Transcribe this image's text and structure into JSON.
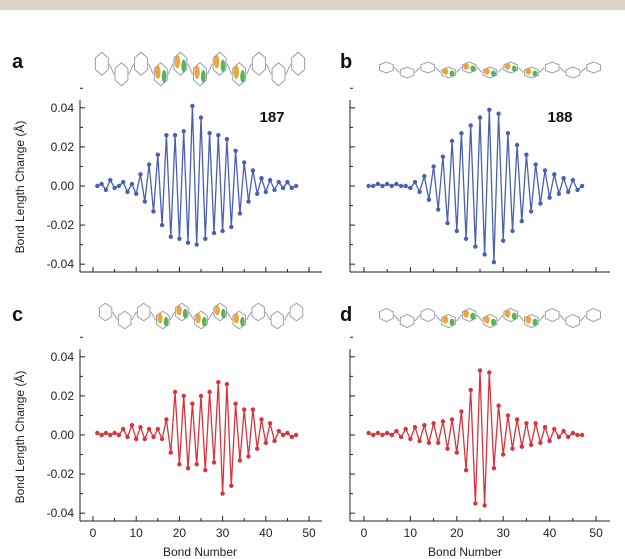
{
  "figure": {
    "ylabel": "Bond Length Change (Å)",
    "xlabel": "Bond Number",
    "colors": {
      "blue": "#4a60b0",
      "red": "#d8343c",
      "molecule_orange": "#e8961c",
      "molecule_green": "#3aa83a",
      "molecule_grey": "#9aa0a8"
    }
  },
  "chart_data": [
    {
      "panel": "a",
      "label": "187",
      "type": "line",
      "color": "#4a60b0",
      "xlim": [
        -3,
        53
      ],
      "ylim": [
        -0.044,
        0.044
      ],
      "yticks": [
        "0.04",
        "0.02",
        "0.00",
        "-0.02",
        "-0.04"
      ],
      "xticks": [],
      "x": [
        1,
        2,
        3,
        4,
        5,
        6,
        7,
        8,
        9,
        10,
        11,
        12,
        13,
        14,
        15,
        16,
        17,
        18,
        19,
        20,
        21,
        22,
        23,
        24,
        25,
        26,
        27,
        28,
        29,
        30,
        31,
        32,
        33,
        34,
        35,
        36,
        37,
        38,
        39,
        40,
        41,
        42,
        43,
        44,
        45,
        46,
        47
      ],
      "y": [
        0.0,
        0.001,
        -0.002,
        0.003,
        -0.001,
        0.0,
        0.002,
        -0.003,
        0.001,
        -0.004,
        0.006,
        -0.008,
        0.011,
        -0.013,
        0.016,
        -0.02,
        0.026,
        -0.026,
        0.026,
        -0.027,
        0.028,
        -0.029,
        0.041,
        -0.03,
        0.035,
        -0.027,
        0.027,
        -0.024,
        0.026,
        -0.023,
        0.024,
        -0.021,
        0.018,
        -0.014,
        0.012,
        -0.008,
        0.008,
        -0.004,
        0.004,
        -0.003,
        0.003,
        -0.002,
        0.002,
        -0.001,
        0.002,
        -0.001,
        0.0
      ]
    },
    {
      "panel": "b",
      "label": "188",
      "type": "line",
      "color": "#4a60b0",
      "xlim": [
        -3,
        53
      ],
      "ylim": [
        -0.044,
        0.044
      ],
      "yticks": [],
      "xticks": [],
      "x": [
        1,
        2,
        3,
        4,
        5,
        6,
        7,
        8,
        9,
        10,
        11,
        12,
        13,
        14,
        15,
        16,
        17,
        18,
        19,
        20,
        21,
        22,
        23,
        24,
        25,
        26,
        27,
        28,
        29,
        30,
        31,
        32,
        33,
        34,
        35,
        36,
        37,
        38,
        39,
        40,
        41,
        42,
        43,
        44,
        45,
        46,
        47
      ],
      "y": [
        0.0,
        0.0,
        0.001,
        0.0,
        0.001,
        0.0,
        0.001,
        0.0,
        0.0,
        -0.001,
        0.002,
        -0.003,
        0.005,
        -0.007,
        0.01,
        -0.012,
        0.015,
        -0.019,
        0.023,
        -0.023,
        0.027,
        -0.027,
        0.031,
        -0.031,
        0.035,
        -0.035,
        0.039,
        -0.039,
        0.037,
        -0.028,
        0.027,
        -0.023,
        0.021,
        -0.018,
        0.016,
        -0.013,
        0.011,
        -0.009,
        0.008,
        -0.006,
        0.006,
        -0.004,
        0.004,
        -0.003,
        0.003,
        -0.002,
        0.0
      ]
    },
    {
      "panel": "c",
      "label": "",
      "type": "line",
      "color": "#d8343c",
      "xlim": [
        -3,
        53
      ],
      "ylim": [
        -0.044,
        0.044
      ],
      "yticks": [
        "0.04",
        "0.02",
        "0.00",
        "-0.02",
        "-0.04"
      ],
      "xticks": [
        "0",
        "10",
        "20",
        "30",
        "40",
        "50"
      ],
      "x": [
        1,
        2,
        3,
        4,
        5,
        6,
        7,
        8,
        9,
        10,
        11,
        12,
        13,
        14,
        15,
        16,
        17,
        18,
        19,
        20,
        21,
        22,
        23,
        24,
        25,
        26,
        27,
        28,
        29,
        30,
        31,
        32,
        33,
        34,
        35,
        36,
        37,
        38,
        39,
        40,
        41,
        42,
        43,
        44,
        45,
        46,
        47
      ],
      "y": [
        0.001,
        0.0,
        0.001,
        0.0,
        0.001,
        0.0,
        0.003,
        -0.001,
        0.005,
        -0.002,
        0.004,
        -0.002,
        0.003,
        -0.001,
        0.003,
        -0.002,
        0.008,
        -0.009,
        0.022,
        -0.015,
        0.02,
        -0.017,
        0.016,
        -0.015,
        0.02,
        -0.018,
        0.022,
        -0.014,
        0.027,
        -0.03,
        0.026,
        -0.026,
        0.016,
        -0.013,
        0.013,
        -0.011,
        0.013,
        -0.007,
        0.008,
        -0.004,
        0.006,
        -0.003,
        0.002,
        0.0,
        0.001,
        -0.001,
        0.0
      ]
    },
    {
      "panel": "d",
      "label": "",
      "type": "line",
      "color": "#d8343c",
      "xlim": [
        -3,
        53
      ],
      "ylim": [
        -0.044,
        0.044
      ],
      "yticks": [],
      "xticks": [
        "0",
        "10",
        "20",
        "30",
        "40",
        "50"
      ],
      "x": [
        1,
        2,
        3,
        4,
        5,
        6,
        7,
        8,
        9,
        10,
        11,
        12,
        13,
        14,
        15,
        16,
        17,
        18,
        19,
        20,
        21,
        22,
        23,
        24,
        25,
        26,
        27,
        28,
        29,
        30,
        31,
        32,
        33,
        34,
        35,
        36,
        37,
        38,
        39,
        40,
        41,
        42,
        43,
        44,
        45,
        46,
        47
      ],
      "y": [
        0.001,
        0.0,
        0.001,
        0.0,
        0.001,
        0.0,
        0.002,
        -0.001,
        0.003,
        -0.002,
        0.004,
        -0.003,
        0.005,
        -0.004,
        0.006,
        -0.004,
        0.007,
        -0.007,
        0.008,
        -0.009,
        0.012,
        -0.018,
        0.023,
        -0.035,
        0.033,
        -0.036,
        0.032,
        -0.017,
        0.015,
        -0.01,
        0.01,
        -0.007,
        0.008,
        -0.006,
        0.006,
        -0.005,
        0.006,
        -0.004,
        0.004,
        -0.003,
        0.003,
        -0.001,
        0.002,
        -0.001,
        0.001,
        0.0,
        0.0
      ]
    }
  ]
}
